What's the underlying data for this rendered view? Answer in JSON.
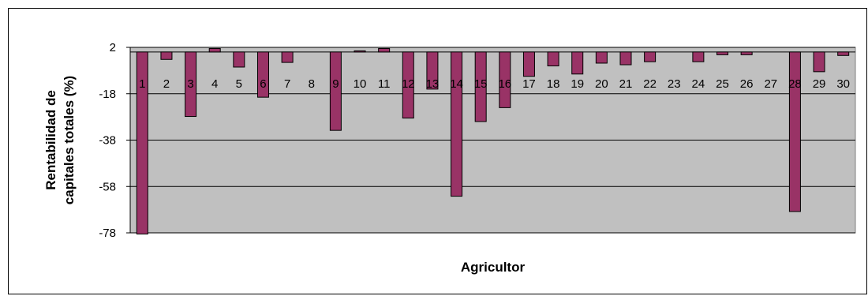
{
  "chart_data": {
    "type": "bar",
    "title": "",
    "xlabel": "Agricultor",
    "ylabel_lines": [
      "Rentabilidad de",
      "capitales totales (%)"
    ],
    "ylim": [
      -78,
      2
    ],
    "yticks": [
      2,
      -18,
      -38,
      -58,
      -78
    ],
    "grid": true,
    "legend": "none",
    "categories": [
      "1",
      "2",
      "3",
      "4",
      "5",
      "6",
      "7",
      "8",
      "9",
      "10",
      "11",
      "12",
      "13",
      "14",
      "15",
      "16",
      "17",
      "18",
      "19",
      "20",
      "21",
      "22",
      "23",
      "24",
      "25",
      "26",
      "27",
      "28",
      "29",
      "30"
    ],
    "values": [
      -78.5,
      -3.2,
      -27.8,
      1.5,
      -6.5,
      -19.5,
      -4.5,
      0,
      -33.8,
      0.5,
      1.5,
      -28.5,
      -16,
      -62.2,
      -30,
      -24,
      -10.5,
      -6,
      -9.5,
      -4.8,
      -5.5,
      -4.2,
      0,
      -4.2,
      -1.2,
      -1.2,
      0,
      -68.8,
      -8.5,
      -1.5
    ],
    "colors": {
      "bar_fill": "#993366",
      "plot_background": "#c0c0c0",
      "gridline": "#000000"
    }
  }
}
